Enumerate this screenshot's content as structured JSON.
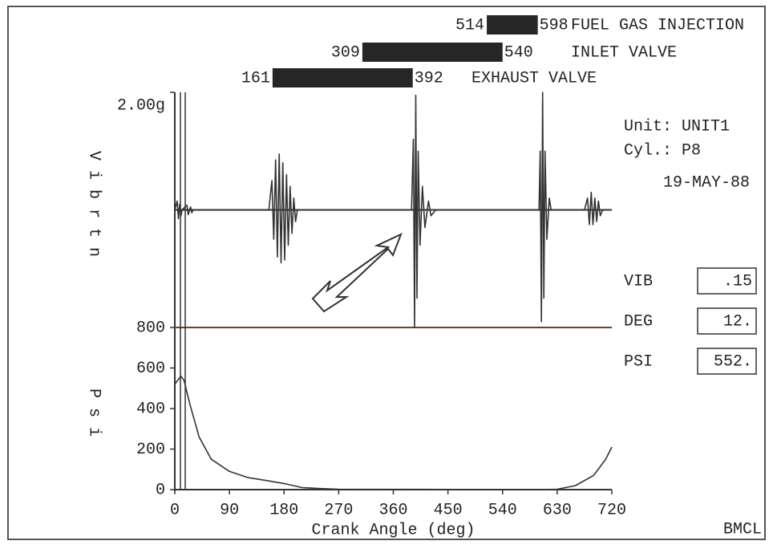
{
  "chart_data": [
    {
      "type": "line",
      "y_label": "Vibrtn",
      "x": [
        0,
        4,
        6,
        8,
        10,
        12,
        20,
        22,
        26,
        28,
        30,
        60,
        155,
        160,
        163,
        166,
        169,
        172,
        175,
        178,
        181,
        184,
        187,
        190,
        193,
        196,
        199,
        202,
        390,
        393,
        395,
        397,
        399,
        401,
        404,
        408,
        412,
        418,
        422,
        430,
        600,
        602,
        604,
        606,
        608,
        610,
        613,
        617,
        620,
        675,
        680,
        683,
        686,
        689,
        692,
        695,
        698,
        701,
        705,
        720
      ],
      "values": [
        0,
        0.15,
        -0.15,
        0.1,
        -0.1,
        0,
        0.08,
        -0.08,
        0.05,
        -0.05,
        0,
        0,
        0,
        0.5,
        -0.5,
        0.85,
        -0.8,
        0.95,
        -0.9,
        0.8,
        -0.85,
        0.6,
        -0.6,
        0.4,
        -0.4,
        0.2,
        -0.2,
        0,
        0,
        1.2,
        -2.0,
        1.95,
        -1.5,
        1.0,
        -0.6,
        0.4,
        -0.3,
        0.15,
        -0.1,
        0,
        0,
        1.0,
        -1.9,
        2.0,
        -1.5,
        1.0,
        -0.5,
        0.2,
        0,
        0,
        0.2,
        -0.25,
        0.3,
        -0.25,
        0.2,
        -0.2,
        0.15,
        -0.1,
        0,
        0
      ],
      "xlim": [
        0,
        720
      ],
      "ylim": [
        -2,
        2
      ],
      "yticks": [
        {
          "value": 2,
          "label": "2.00g"
        }
      ],
      "color": "#333333"
    },
    {
      "type": "line",
      "y_label": "Psi",
      "x_label": "Crank Angle (deg)",
      "x": [
        0,
        5,
        10,
        15,
        25,
        40,
        60,
        90,
        120,
        150,
        180,
        210,
        240,
        270,
        600,
        630,
        660,
        690,
        710,
        720
      ],
      "values": [
        520,
        540,
        560,
        540,
        420,
        260,
        150,
        90,
        60,
        45,
        30,
        10,
        5,
        2,
        0,
        2,
        20,
        70,
        150,
        210
      ],
      "xlim": [
        0,
        720
      ],
      "ylim": [
        0,
        800
      ],
      "xticks": [
        0,
        90,
        180,
        270,
        360,
        450,
        540,
        630,
        720
      ],
      "yticks": [
        0,
        200,
        400,
        600,
        800
      ],
      "color": "#333333"
    }
  ],
  "valve_events": [
    {
      "start": 514,
      "end": 598,
      "name": "FUEL GAS INJECTION"
    },
    {
      "start": 309,
      "end": 540,
      "name": "INLET VALVE"
    },
    {
      "start": 161,
      "end": 392,
      "name": "EXHAUST VALVE"
    }
  ],
  "info": {
    "unit_label": "Unit:",
    "unit": "UNIT1",
    "cyl_label": "Cyl.:",
    "cyl": "P8",
    "date": "19-MAY-88"
  },
  "readouts": [
    {
      "label": "VIB",
      "value": ".15"
    },
    {
      "label": "DEG",
      "value": "12."
    },
    {
      "label": "PSI",
      "value": "552."
    }
  ],
  "footer": "BMCL"
}
